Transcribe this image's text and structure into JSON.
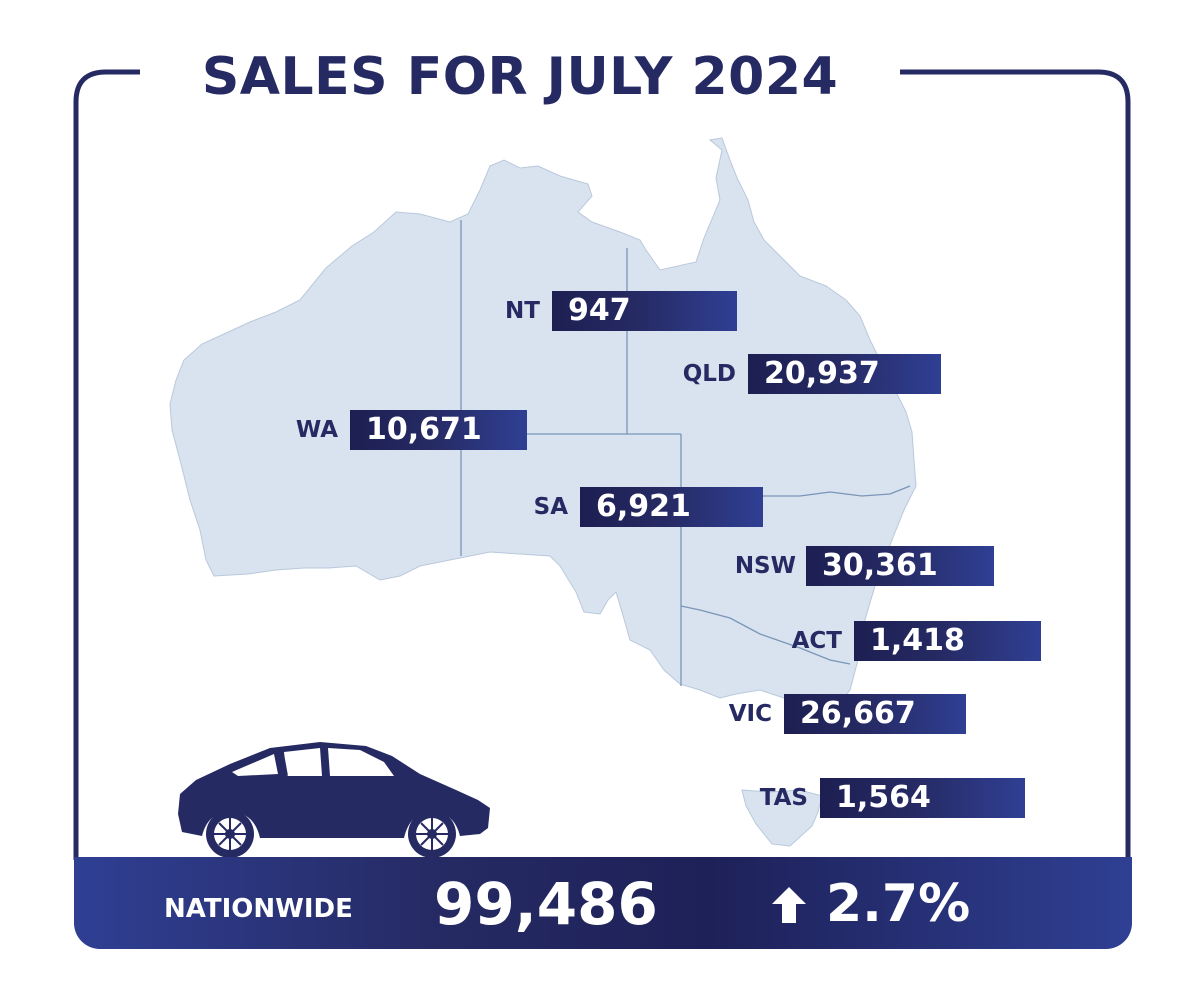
{
  "title": "SALES FOR JULY 2024",
  "colors": {
    "navy": "#262a63",
    "bar_dark": "#1d1f52",
    "bar_light": "#2f3f93",
    "land": "#d9e3ef",
    "border_line": "#7a95b8"
  },
  "states": [
    {
      "code": "NT",
      "value": "947"
    },
    {
      "code": "QLD",
      "value": "20,937"
    },
    {
      "code": "WA",
      "value": "10,671"
    },
    {
      "code": "SA",
      "value": "6,921"
    },
    {
      "code": "NSW",
      "value": "30,361"
    },
    {
      "code": "ACT",
      "value": "1,418"
    },
    {
      "code": "VIC",
      "value": "26,667"
    },
    {
      "code": "TAS",
      "value": "1,564"
    }
  ],
  "nationwide": {
    "label": "NATIONWIDE",
    "value": "99,486",
    "change": "2.7%",
    "change_icon": "up-arrow-icon"
  },
  "illustration_icon": "car-icon"
}
